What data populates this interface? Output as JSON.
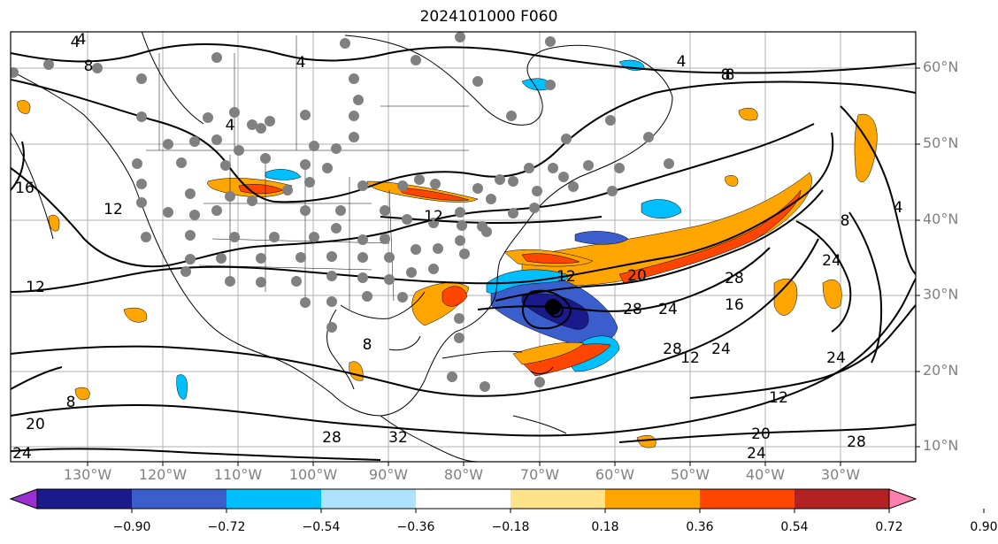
{
  "title": "2024101000 F060",
  "lat_labels": [
    "60°N",
    "50°N",
    "40°N",
    "30°N",
    "20°N",
    "10°N"
  ],
  "lon_labels": [
    "130°W",
    "120°W",
    "110°W",
    "100°W",
    "90°W",
    "80°W",
    "70°W",
    "60°W",
    "50°W",
    "40°W",
    "30°W"
  ],
  "colorbar": {
    "ticks": [
      "−0.90",
      "−0.72",
      "−0.54",
      "−0.36",
      "−0.18",
      "0.18",
      "0.36",
      "0.54",
      "0.72",
      "0.90"
    ],
    "colors": [
      "#9b30d0",
      "#1a1a8c",
      "#3a5fcd",
      "#00bfff",
      "#aee3ff",
      "#ffffff",
      "#ffe38a",
      "#ffa500",
      "#ff4500",
      "#b22222",
      "#ff80b0"
    ]
  },
  "contour_labels": [
    "4",
    "4",
    "8",
    "4",
    "4",
    "8",
    "12",
    "16",
    "12",
    "12",
    "12",
    "20",
    "28",
    "24",
    "28",
    "24",
    "28",
    "16",
    "24",
    "12",
    "12",
    "20",
    "24",
    "28",
    "8",
    "20",
    "24",
    "28",
    "32",
    "8",
    "24",
    "4",
    "8",
    "4",
    "8"
  ],
  "colors": {
    "frame": "#000000",
    "axis_text": "#808080",
    "station": "#808080",
    "storm": "#000000"
  }
}
